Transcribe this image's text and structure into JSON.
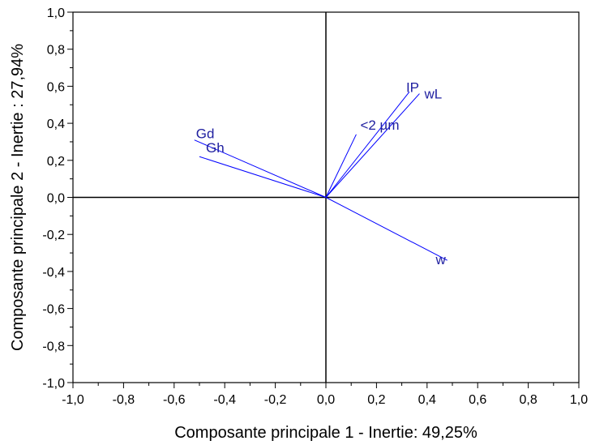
{
  "chart_data": {
    "type": "scatter",
    "subtype": "pca-correlation-circle",
    "xlabel": "Composante principale 1 - Inertie: 49,25%",
    "ylabel": "Composante principale 2 - Inertie : 27,94%",
    "xlim": [
      -1.0,
      1.0
    ],
    "ylim": [
      -1.0,
      1.0
    ],
    "major_step": 0.2,
    "tick_labels_x": [
      "-1,0",
      "-0,8",
      "-0,6",
      "-0,4",
      "-0,2",
      "0,0",
      "0,2",
      "0,4",
      "0,6",
      "0,8",
      "1,0"
    ],
    "tick_labels_y": [
      "-1,0",
      "-0,8",
      "-0,6",
      "-0,4",
      "-0,2",
      "0,0",
      "0,2",
      "0,4",
      "0,6",
      "0,8",
      "1,0"
    ],
    "grid": false,
    "zero_lines": true,
    "vectors": [
      {
        "name": "Gd",
        "x": -0.52,
        "y": 0.31
      },
      {
        "name": "Gh",
        "x": -0.5,
        "y": 0.22
      },
      {
        "name": "<2 µm",
        "x": 0.12,
        "y": 0.34
      },
      {
        "name": "IP",
        "x": 0.33,
        "y": 0.57
      },
      {
        "name": "wL",
        "x": 0.37,
        "y": 0.56
      },
      {
        "name": "w",
        "x": 0.48,
        "y": -0.34
      }
    ],
    "colors": {
      "vectors": "#0000ff",
      "labels": "#2020a0",
      "axes": "#000000"
    }
  }
}
